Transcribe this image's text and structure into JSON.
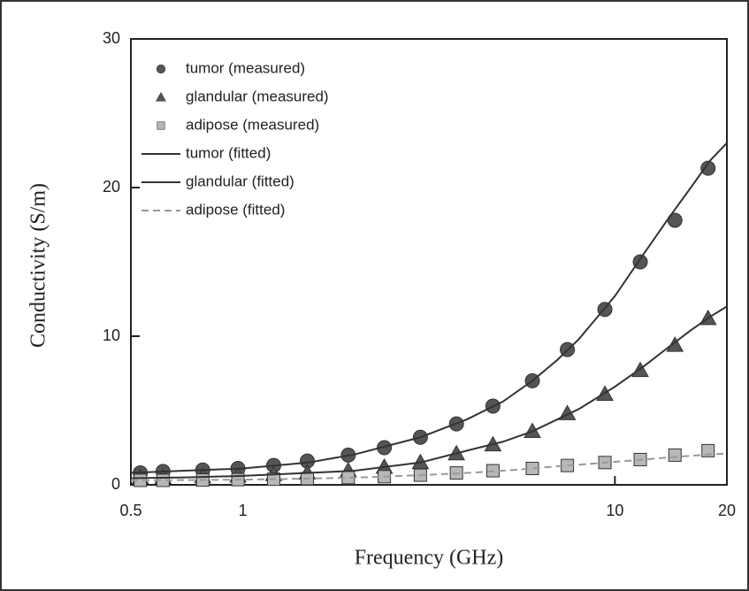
{
  "chart_data": {
    "type": "line",
    "x_label": "Frequency (GHz)",
    "y_label": "Conductivity (S/m)",
    "xlim": [
      0.5,
      20
    ],
    "xticks": [
      0.5,
      1,
      10,
      20
    ],
    "x_log": true,
    "ylim": [
      0,
      30
    ],
    "yticks": [
      0,
      10,
      20,
      30
    ],
    "legend": "top-left",
    "series": [
      {
        "name": "tumor (measured)",
        "color": "#555555",
        "mode": "markers",
        "marker": "circle",
        "x": [
          0.53,
          0.61,
          0.78,
          0.97,
          1.21,
          1.49,
          1.92,
          2.4,
          3.0,
          3.75,
          4.7,
          6.0,
          7.45,
          9.4,
          11.7,
          14.5,
          17.8
        ],
        "values": [
          0.8,
          0.9,
          1.0,
          1.1,
          1.3,
          1.6,
          2.0,
          2.5,
          3.2,
          4.1,
          5.3,
          7.0,
          9.1,
          11.8,
          15.0,
          17.8,
          21.3
        ]
      },
      {
        "name": "glandular (measured)",
        "color": "#555555",
        "mode": "markers",
        "marker": "triangle",
        "x": [
          0.53,
          0.61,
          0.78,
          0.97,
          1.21,
          1.49,
          1.92,
          2.4,
          3.0,
          3.75,
          4.7,
          6.0,
          7.45,
          9.4,
          11.7,
          14.5,
          17.8
        ],
        "values": [
          0.5,
          0.5,
          0.55,
          0.6,
          0.7,
          0.8,
          0.95,
          1.2,
          1.5,
          2.1,
          2.7,
          3.6,
          4.8,
          6.1,
          7.7,
          9.4,
          11.2
        ]
      },
      {
        "name": "adipose (measured)",
        "color": "#b8b8b8",
        "mode": "markers",
        "marker": "square",
        "x": [
          0.53,
          0.61,
          0.78,
          0.97,
          1.21,
          1.49,
          1.92,
          2.4,
          3.0,
          3.75,
          4.7,
          6.0,
          7.45,
          9.4,
          11.7,
          14.5,
          17.8
        ],
        "values": [
          0.3,
          0.3,
          0.32,
          0.35,
          0.38,
          0.42,
          0.48,
          0.55,
          0.65,
          0.8,
          0.95,
          1.1,
          1.3,
          1.5,
          1.7,
          2.0,
          2.3
        ]
      },
      {
        "name": "tumor (fitted)",
        "color": "#333333",
        "mode": "lines",
        "x": [
          0.5,
          0.7,
          1,
          1.5,
          2,
          3,
          4,
          5,
          6,
          7,
          8,
          10,
          12,
          14,
          16,
          18,
          20
        ],
        "values": [
          0.8,
          0.95,
          1.1,
          1.5,
          2.05,
          3.2,
          4.4,
          5.6,
          7.0,
          8.4,
          9.8,
          12.7,
          15.6,
          18.0,
          20.0,
          21.8,
          23.0
        ]
      },
      {
        "name": "glandular (fitted)",
        "color": "#333333",
        "mode": "lines",
        "x": [
          0.5,
          0.7,
          1,
          1.5,
          2,
          3,
          4,
          5,
          6,
          7,
          8,
          10,
          12,
          14,
          16,
          18,
          20
        ],
        "values": [
          0.45,
          0.5,
          0.6,
          0.8,
          0.95,
          1.5,
          2.3,
          2.9,
          3.6,
          4.4,
          5.1,
          6.6,
          8.0,
          9.3,
          10.4,
          11.3,
          12.0
        ]
      },
      {
        "name": "adipose (fitted)",
        "color": "#999999",
        "mode": "lines",
        "dashed": true,
        "x": [
          0.5,
          0.7,
          1,
          1.5,
          2,
          3,
          4,
          5,
          6,
          7,
          8,
          10,
          12,
          14,
          16,
          18,
          20
        ],
        "values": [
          0.3,
          0.32,
          0.35,
          0.42,
          0.48,
          0.65,
          0.8,
          0.95,
          1.1,
          1.25,
          1.35,
          1.55,
          1.7,
          1.85,
          1.95,
          2.05,
          2.1
        ]
      }
    ]
  }
}
